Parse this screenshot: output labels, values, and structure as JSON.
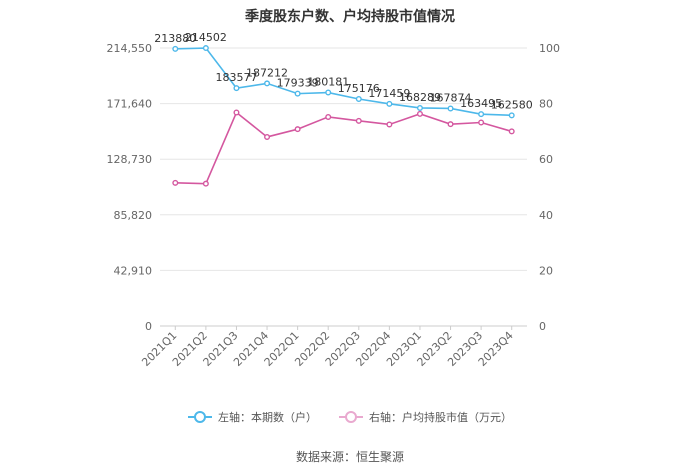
{
  "chart_data": {
    "type": "line",
    "title": "季度股东户数、户均持股市值情况",
    "categories": [
      "2021Q1",
      "2021Q2",
      "2021Q3",
      "2021Q4",
      "2022Q1",
      "2022Q2",
      "2022Q3",
      "2022Q4",
      "2023Q1",
      "2023Q2",
      "2023Q3",
      "2023Q4"
    ],
    "left_axis": {
      "ticks": [
        "0",
        "42,910",
        "85,820",
        "128,730",
        "171,640",
        "214,550"
      ],
      "ylim": [
        0,
        214550
      ]
    },
    "right_axis": {
      "ticks": [
        "0",
        "20",
        "40",
        "60",
        "80",
        "100"
      ],
      "ylim": [
        0,
        100
      ]
    },
    "series": [
      {
        "name": "左轴：本期数（户）",
        "axis": "left",
        "color": "#4db8ea",
        "values": [
          213880,
          214502,
          183577,
          187212,
          179339,
          180181,
          175176,
          171459,
          168289,
          167874,
          163495,
          162580
        ],
        "labels": [
          "213880",
          "214502",
          "183577",
          "187212",
          "179339",
          "180181",
          "175176",
          "171459",
          "168289",
          "167874",
          "163495",
          "162580"
        ]
      },
      {
        "name": "右轴：户均持股市值（万元）",
        "axis": "right",
        "color": "#d4579f",
        "values": [
          51.5,
          51.2,
          76.8,
          68.0,
          70.8,
          75.2,
          73.8,
          72.5,
          76.3,
          72.6,
          73.2,
          70.0
        ]
      }
    ],
    "grid": true,
    "legend_position": "bottom"
  },
  "source_text": "数据来源：恒生聚源"
}
